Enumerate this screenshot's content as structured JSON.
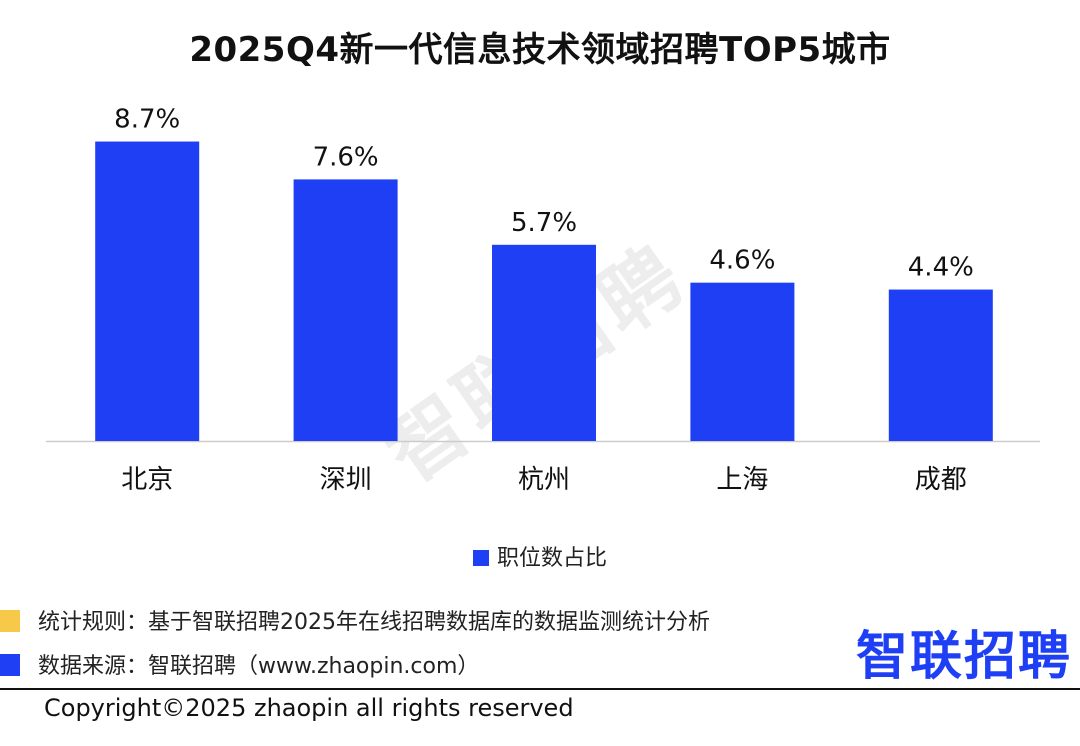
{
  "title": "2025Q4新一代信息技术领域招聘TOP5城市",
  "watermark": "智联招聘",
  "colors": {
    "bar": "#1f3ff5",
    "rule_marker": "#f7c948",
    "source_marker": "#1f3ff5",
    "axis": "#cccccc"
  },
  "chart_data": {
    "type": "bar",
    "categories": [
      "北京",
      "深圳",
      "杭州",
      "上海",
      "成都"
    ],
    "series": [
      {
        "name": "职位数占比",
        "values": [
          8.7,
          7.6,
          5.7,
          4.6,
          4.4
        ],
        "labels": [
          "8.7%",
          "7.6%",
          "5.7%",
          "4.6%",
          "4.4%"
        ]
      }
    ],
    "ylim": [
      0,
      9.5
    ],
    "grid": false,
    "legend": "bottom"
  },
  "notes": {
    "rule": "统计规则：基于智联招聘2025年在线招聘数据库的数据监测统计分析",
    "source": "数据来源：智联招聘（www.zhaopin.com）"
  },
  "logo": "智联招聘",
  "copyright": "Copyright©2025 zhaopin all rights reserved"
}
